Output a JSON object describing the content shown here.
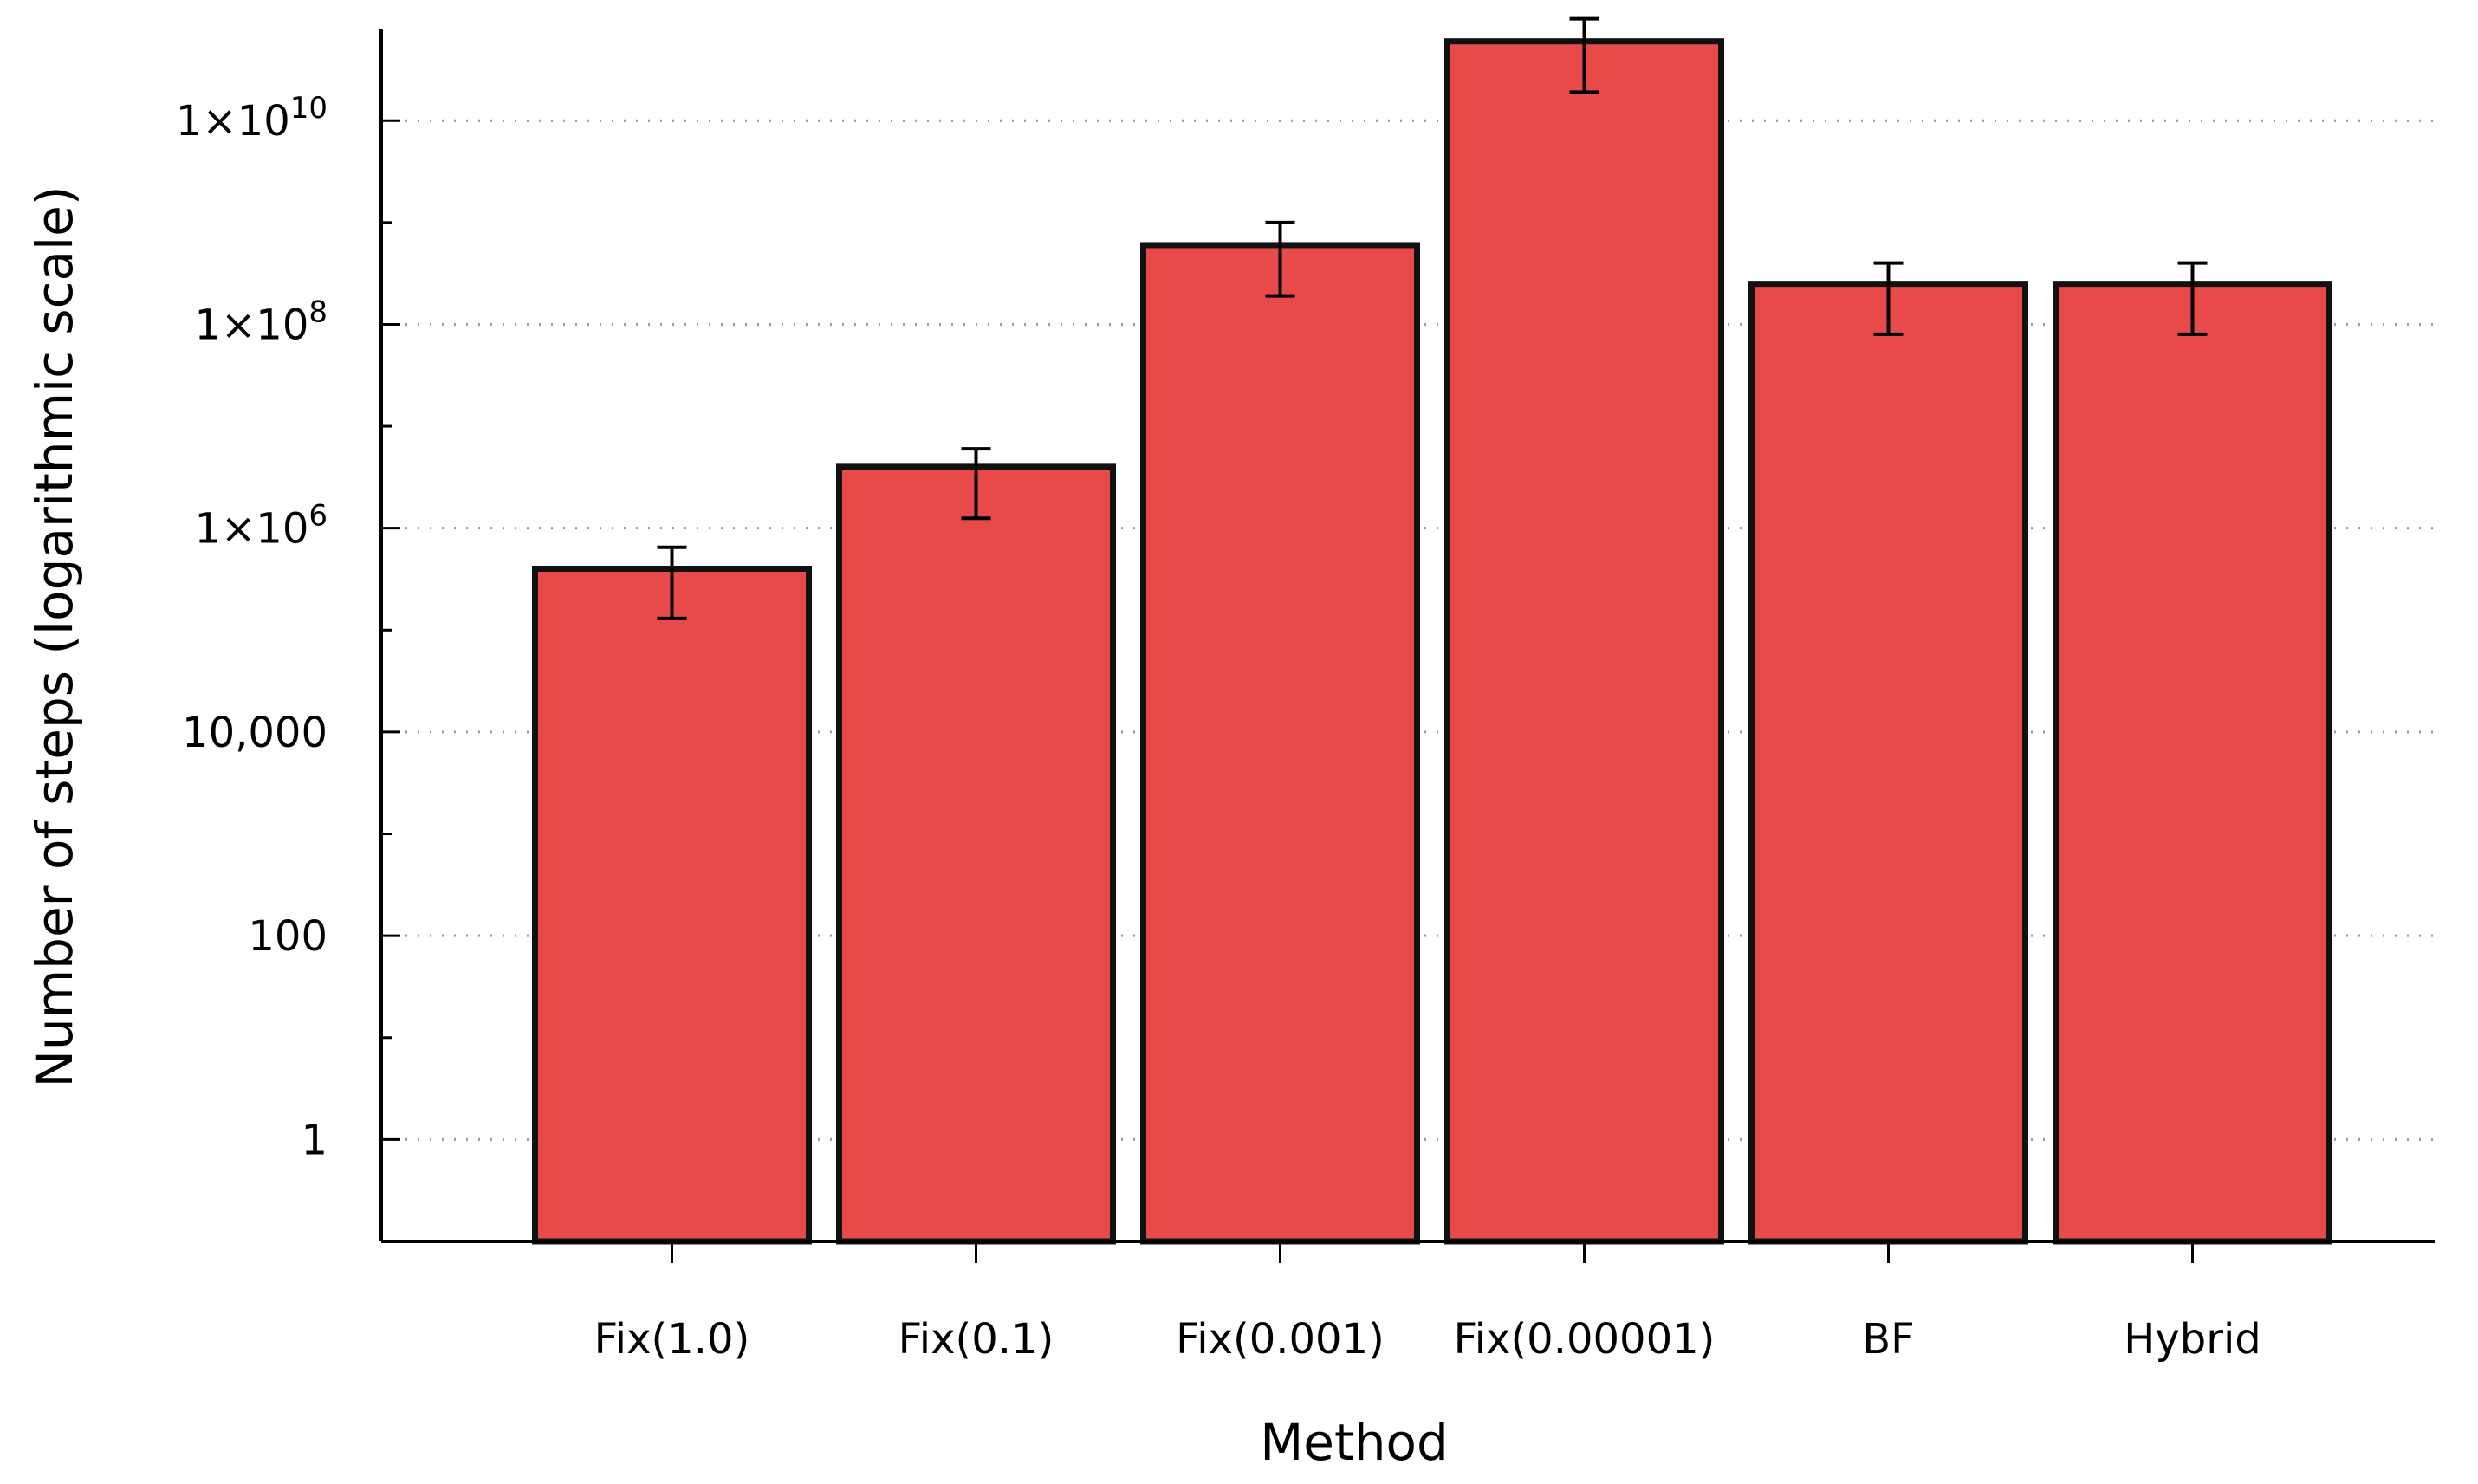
{
  "chart_data": {
    "type": "bar",
    "xlabel": "Method",
    "ylabel": "Number of steps (logarithmic scale)",
    "y_scale": "log",
    "ylim": [
      0.1,
      80000000000
    ],
    "grid": "horizontal-dotted",
    "bar_color": "#e84a4a",
    "categories": [
      "Fix(1.0)",
      "Fix(0.1)",
      "Fix(0.001)",
      "Fix(0.00001)",
      "BF",
      "Hybrid"
    ],
    "values": [
      400000,
      4000000,
      600000000,
      60000000000,
      250000000,
      250000000
    ],
    "error_low": [
      130000,
      1250000,
      190000000,
      19000000000,
      80000000,
      80000000
    ],
    "error_high": [
      650000,
      6000000,
      1000000000,
      100000000000,
      400000000,
      400000000
    ],
    "y_ticks": [
      {
        "value": 1,
        "label": "1"
      },
      {
        "value": 100,
        "label": "100"
      },
      {
        "value": 10000,
        "label": "10,000"
      },
      {
        "value": 1000000,
        "label": "1×10",
        "exp": "6"
      },
      {
        "value": 100000000,
        "label": "1×10",
        "exp": "8"
      },
      {
        "value": 10000000000,
        "label": "1×10",
        "exp": "10"
      }
    ]
  }
}
